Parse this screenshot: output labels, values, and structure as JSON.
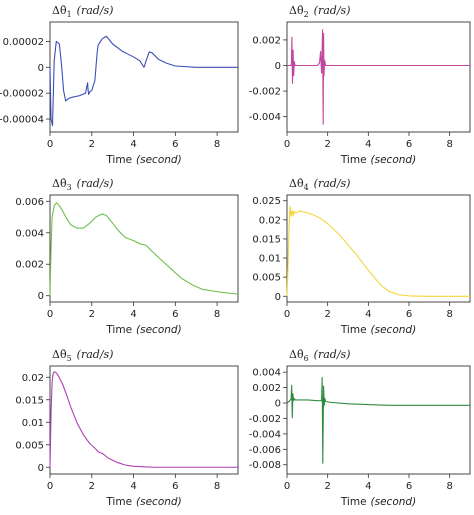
{
  "chart_data": [
    {
      "type": "line",
      "title": "Δθ̇1 (rad/s)",
      "title_main": "Δθ̇",
      "title_sub": "1",
      "title_unit": "(rad/s)",
      "xlabel": "Time",
      "xlabel_unit": "(second)",
      "xlim": [
        0,
        9
      ],
      "ylim": [
        -5e-05,
        3.5e-05
      ],
      "xticks": [
        0,
        2,
        4,
        6,
        8
      ],
      "xtick_labels": [
        "0",
        "2",
        "4",
        "6",
        "8"
      ],
      "yticks": [
        2e-05,
        0,
        -2e-05,
        -4e-05
      ],
      "ytick_labels": [
        "0.00002",
        "0",
        "-0.00002",
        "-0.00004"
      ],
      "grid": false,
      "color": "#3a4fb5",
      "series": [
        {
          "x": [
            0,
            0.05,
            0.12,
            0.2,
            0.3,
            0.45,
            0.55,
            0.65,
            0.75,
            0.9,
            1.1,
            1.4,
            1.7,
            1.8,
            1.82,
            1.85,
            1.9,
            2.0,
            2.15,
            2.25,
            2.3,
            2.5,
            2.7,
            3.0,
            3.5,
            4.0,
            4.3,
            4.5,
            4.6,
            4.75,
            4.9,
            5.2,
            5.6,
            6.0,
            7.0,
            8.0,
            9.0
          ],
          "y": [
            0,
            -4e-05,
            -4.5e-05,
            5e-06,
            2e-05,
            1.8e-05,
            2e-06,
            -1.8e-05,
            -2.6e-05,
            -2.4e-05,
            -2.3e-05,
            -2.2e-05,
            -2e-05,
            -1.2e-05,
            -1.7e-05,
            -2.1e-05,
            -1.9e-05,
            -1.8e-05,
            -1e-05,
            1e-05,
            1.7e-05,
            2.2e-05,
            2.4e-05,
            1.8e-05,
            1.2e-05,
            8e-06,
            5e-06,
            0,
            5e-06,
            1.2e-05,
            1.1e-05,
            6e-06,
            3e-06,
            1e-06,
            0,
            0,
            0
          ]
        }
      ]
    },
    {
      "type": "line",
      "title": "Δθ̇2 (rad/s)",
      "title_main": "Δθ̇",
      "title_sub": "2",
      "title_unit": "(rad/s)",
      "xlabel": "Time",
      "xlabel_unit": "(second)",
      "xlim": [
        0,
        9
      ],
      "ylim": [
        -0.0052,
        0.0034
      ],
      "xticks": [
        0,
        2,
        4,
        6,
        8
      ],
      "xtick_labels": [
        "0",
        "2",
        "4",
        "6",
        "8"
      ],
      "yticks": [
        0.002,
        0,
        -0.002,
        -0.004
      ],
      "ytick_labels": [
        "0.002",
        "0",
        "-0.002",
        "-0.004"
      ],
      "grid": false,
      "color": "#c2479e",
      "series": [
        {
          "x": [
            0,
            0.2,
            0.22,
            0.24,
            0.27,
            0.3,
            0.33,
            0.36,
            0.4,
            1.5,
            1.6,
            1.65,
            1.7,
            1.75,
            1.78,
            1.8,
            1.82,
            1.85,
            1.9,
            2.0,
            3.0,
            5.0,
            7.0,
            9.0
          ],
          "y": [
            0,
            0,
            0.0002,
            0.0022,
            -0.0014,
            0.0012,
            -0.0008,
            0.0003,
            0,
            0,
            0.0002,
            0.0011,
            -0.0006,
            0.0028,
            -0.0046,
            0.0025,
            -0.0008,
            0.0004,
            0,
            0,
            0,
            0,
            0,
            0
          ]
        }
      ]
    },
    {
      "type": "line",
      "title": "Δθ̇3 (rad/s)",
      "title_main": "Δθ̇",
      "title_sub": "3",
      "title_unit": "(rad/s)",
      "xlabel": "Time",
      "xlabel_unit": "(second)",
      "xlim": [
        0,
        9
      ],
      "ylim": [
        -0.0004,
        0.0064
      ],
      "xticks": [
        0,
        2,
        4,
        6,
        8
      ],
      "xtick_labels": [
        "0",
        "2",
        "4",
        "6",
        "8"
      ],
      "yticks": [
        0.006,
        0.004,
        0.002,
        0
      ],
      "ytick_labels": [
        "0.006",
        "0.004",
        "0.002",
        "0"
      ],
      "grid": false,
      "color": "#6dc04b",
      "series": [
        {
          "x": [
            0,
            0.05,
            0.1,
            0.2,
            0.3,
            0.4,
            0.6,
            0.8,
            1.0,
            1.3,
            1.6,
            1.9,
            2.2,
            2.5,
            2.7,
            3.0,
            3.3,
            3.6,
            4.0,
            4.3,
            4.6,
            4.9,
            5.3,
            5.8,
            6.3,
            6.8,
            7.3,
            7.8,
            8.3,
            9.0
          ],
          "y": [
            0,
            0.003,
            0.005,
            0.0057,
            0.0059,
            0.0058,
            0.0054,
            0.0049,
            0.0045,
            0.0043,
            0.0043,
            0.0046,
            0.005,
            0.0052,
            0.0051,
            0.0046,
            0.0041,
            0.0037,
            0.0035,
            0.0033,
            0.0032,
            0.0028,
            0.0023,
            0.0017,
            0.0011,
            0.0007,
            0.0004,
            0.0003,
            0.0002,
            0.0001
          ]
        }
      ]
    },
    {
      "type": "line",
      "title": "Δθ̇4 (rad/s)",
      "title_main": "Δθ̇",
      "title_sub": "4",
      "title_unit": "(rad/s)",
      "xlabel": "Time",
      "xlabel_unit": "(second)",
      "xlim": [
        0,
        9
      ],
      "ylim": [
        -0.0015,
        0.0265
      ],
      "xticks": [
        0,
        2,
        4,
        6,
        8
      ],
      "xtick_labels": [
        "0",
        "2",
        "4",
        "6",
        "8"
      ],
      "yticks": [
        0.025,
        0.02,
        0.015,
        0.01,
        0.005,
        0
      ],
      "ytick_labels": [
        "0.025",
        "0.02",
        "0.015",
        "0.01",
        "0.005",
        "0"
      ],
      "grid": false,
      "color": "#f5d53c",
      "series": [
        {
          "x": [
            0,
            0.05,
            0.1,
            0.15,
            0.2,
            0.25,
            0.3,
            0.35,
            0.4,
            0.5,
            0.6,
            0.8,
            1.0,
            1.3,
            1.6,
            1.8,
            2.0,
            2.3,
            2.6,
            3.0,
            3.4,
            3.8,
            4.2,
            4.6,
            5.0,
            5.5,
            6.0,
            7.0,
            8.0,
            9.0
          ],
          "y": [
            0,
            0.008,
            0.018,
            0.0235,
            0.021,
            0.0225,
            0.021,
            0.0222,
            0.0218,
            0.022,
            0.0223,
            0.0221,
            0.0218,
            0.0213,
            0.0205,
            0.0198,
            0.019,
            0.0175,
            0.016,
            0.0135,
            0.011,
            0.0082,
            0.0055,
            0.003,
            0.0013,
            0.0004,
            0.0001,
            0,
            0,
            0
          ]
        }
      ]
    },
    {
      "type": "line",
      "title": "Δθ̇5 (rad/s)",
      "title_main": "Δθ̇",
      "title_sub": "5",
      "title_unit": "(rad/s)",
      "xlabel": "Time",
      "xlabel_unit": "(second)",
      "xlim": [
        0,
        9
      ],
      "ylim": [
        -0.0015,
        0.0225
      ],
      "xticks": [
        0,
        2,
        4,
        6,
        8
      ],
      "xtick_labels": [
        "0",
        "2",
        "4",
        "6",
        "8"
      ],
      "yticks": [
        0.02,
        0.015,
        0.01,
        0.005,
        0
      ],
      "ytick_labels": [
        "0.02",
        "0.015",
        "0.01",
        "0.005",
        "0"
      ],
      "grid": false,
      "color": "#b03fb5",
      "series": [
        {
          "x": [
            0,
            0.05,
            0.1,
            0.15,
            0.2,
            0.3,
            0.4,
            0.6,
            0.8,
            1.0,
            1.3,
            1.6,
            1.9,
            2.2,
            2.35,
            2.5,
            2.8,
            3.2,
            3.6,
            4.0,
            4.5,
            5.0,
            6.0,
            7.0,
            8.0,
            9.0
          ],
          "y": [
            0,
            0.012,
            0.019,
            0.0208,
            0.0212,
            0.021,
            0.0203,
            0.0185,
            0.016,
            0.0133,
            0.0098,
            0.0072,
            0.0053,
            0.004,
            0.0033,
            0.0031,
            0.002,
            0.0011,
            0.0005,
            0.0002,
            0.0001,
            0,
            0,
            0,
            0,
            0
          ]
        }
      ]
    },
    {
      "type": "line",
      "title": "Δθ̇6 (rad/s)",
      "title_main": "Δθ̇",
      "title_sub": "6",
      "title_unit": "(rad/s)",
      "xlabel": "Time",
      "xlabel_unit": "(second)",
      "xlim": [
        0,
        9
      ],
      "ylim": [
        -0.0092,
        0.0048
      ],
      "xticks": [
        0,
        2,
        4,
        6,
        8
      ],
      "xtick_labels": [
        "0",
        "2",
        "4",
        "6",
        "8"
      ],
      "yticks": [
        0.004,
        0.002,
        0,
        -0.002,
        -0.004,
        -0.006,
        -0.008
      ],
      "ytick_labels": [
        "0.004",
        "0.002",
        "0",
        "-0.002",
        "-0.004",
        "-0.006",
        "-0.008"
      ],
      "grid": false,
      "color": "#2e8b3e",
      "series": [
        {
          "x": [
            0,
            0.1,
            0.2,
            0.23,
            0.26,
            0.29,
            0.32,
            0.35,
            0.4,
            0.6,
            1.0,
            1.5,
            1.7,
            1.73,
            1.76,
            1.8,
            1.83,
            1.86,
            1.9,
            2.1,
            3.0,
            4.0,
            5.0,
            7.0,
            9.0
          ],
          "y": [
            0,
            0.0002,
            0.0005,
            0.0023,
            -0.0019,
            0.0012,
            0.0003,
            0.0006,
            0.0004,
            0.0004,
            0.0004,
            0.0003,
            0.0003,
            0.0033,
            -0.0078,
            0.0022,
            -0.0003,
            0.0006,
            0.0002,
            0.0001,
            -0.0001,
            -0.0002,
            -0.0003,
            -0.0003,
            -0.0003
          ]
        }
      ]
    }
  ]
}
